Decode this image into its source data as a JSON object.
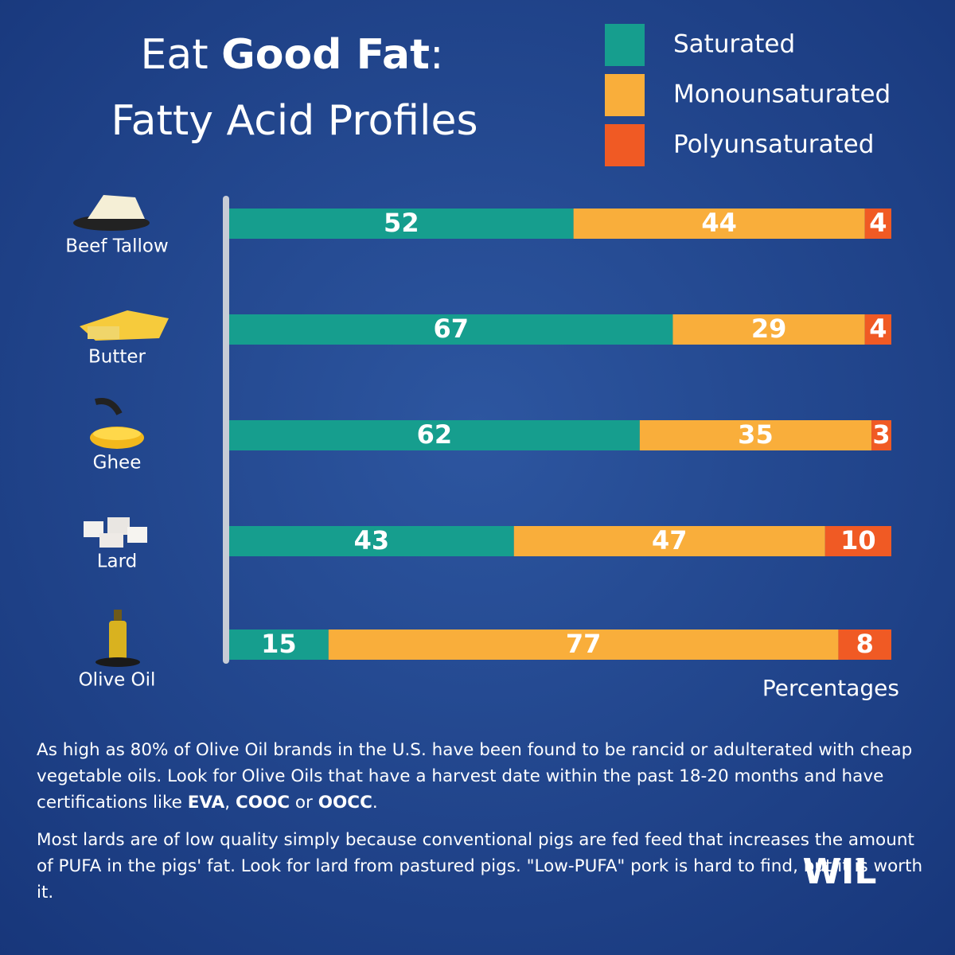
{
  "chart_data": {
    "type": "stacked-bar",
    "title_parts": [
      "Eat ",
      "Good Fat",
      ":"
    ],
    "subtitle": "Fatty Acid Profiles",
    "categories": [
      "Beef Tallow",
      "Butter",
      "Ghee",
      "Lard",
      "Olive Oil"
    ],
    "series": [
      {
        "name": "Saturated",
        "color": "#169e8e",
        "values": [
          52,
          67,
          62,
          43,
          15
        ]
      },
      {
        "name": "Monounsaturated",
        "color": "#f9ae3b",
        "values": [
          44,
          29,
          35,
          47,
          77
        ]
      },
      {
        "name": "Polyunsaturated",
        "color": "#f05a24",
        "values": [
          4,
          4,
          3,
          10,
          8
        ]
      }
    ],
    "xlim": [
      0,
      100
    ],
    "x_label": "Percentages"
  },
  "notes": [
    [
      "As high as 80% of Olive Oil brands in the U.S. have been found to be rancid or adulterated with cheap vegetable oils. Look for Olive Oils that have a harvest date within the past 18-20 months and have certifications like ",
      "EVA",
      ", ",
      "COOC",
      " or ",
      "OOCC",
      "."
    ],
    [
      "Most lards are of low quality simply because conventional pigs are fed feed that increases the amount of PUFA in the pigs' fat. Look for lard from pastured pigs. \"Low-PUFA\" pork is hard to find, but it is worth it."
    ]
  ],
  "logo": "WIL"
}
